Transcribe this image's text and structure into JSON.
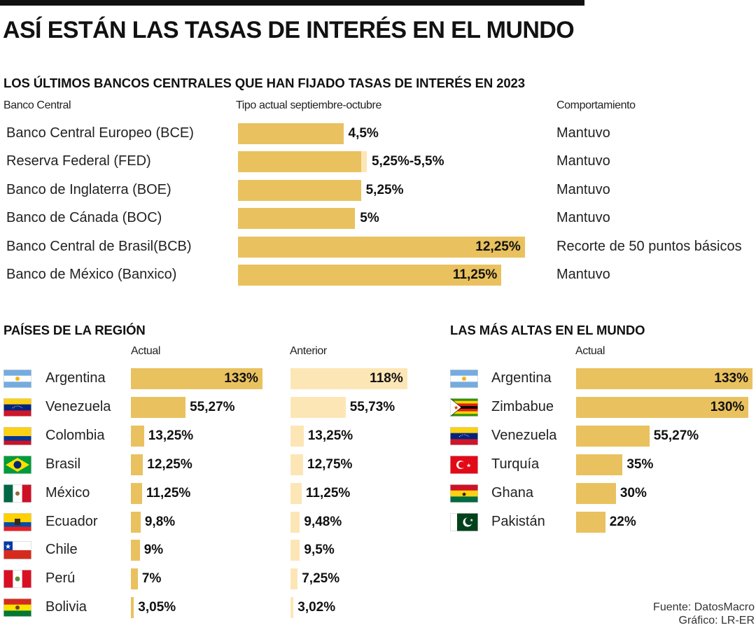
{
  "title": "ASÍ ESTÁN LAS TASAS DE INTERÉS EN EL MUNDO",
  "colors": {
    "bar": "#e9c15e",
    "bar_light": "#fde6b6",
    "text": "#111111"
  },
  "chart_data": [
    {
      "type": "bar",
      "title": "LOS ÚLTIMOS BANCOS CENTRALES QUE HAN FIJADO TASAS DE INTERÉS EN 2023",
      "headers": {
        "bank": "Banco Central",
        "rate": "Tipo actual septiembre-octubre",
        "behavior": "Comportamiento"
      },
      "unit": "%",
      "rows": [
        {
          "name": "Banco Central Europeo (BCE)",
          "value": 4.5,
          "range_max": null,
          "label": "4,5%",
          "behavior": "Mantuvo"
        },
        {
          "name": "Reserva Federal (FED)",
          "value": 5.25,
          "range_max": 5.5,
          "label": "5,25%-5,5%",
          "behavior": "Mantuvo"
        },
        {
          "name": "Banco de Inglaterra (BOE)",
          "value": 5.25,
          "range_max": null,
          "label": "5,25%",
          "behavior": "Mantuvo"
        },
        {
          "name": "Banco de Cánada (BOC)",
          "value": 5,
          "range_max": null,
          "label": "5%",
          "behavior": "Mantuvo"
        },
        {
          "name": "Banco Central de Brasil(BCB)",
          "value": 12.25,
          "range_max": null,
          "label": "12,25%",
          "behavior": "Recorte de 50 puntos básicos"
        },
        {
          "name": "Banco de México (Banxico)",
          "value": 11.25,
          "range_max": null,
          "label": "11,25%",
          "behavior": "Mantuvo"
        }
      ]
    },
    {
      "type": "bar",
      "title": "PAÍSES DE LA REGIÓN",
      "series_names": [
        "Actual",
        "Anterior"
      ],
      "rows": [
        {
          "name": "Argentina",
          "flag": "argentina-flag-icon",
          "actual": 133,
          "actual_label": "133%",
          "anterior": 118,
          "anterior_label": "118%"
        },
        {
          "name": "Venezuela",
          "flag": "venezuela-flag-icon",
          "actual": 55.27,
          "actual_label": "55,27%",
          "anterior": 55.73,
          "anterior_label": "55,73%"
        },
        {
          "name": "Colombia",
          "flag": "colombia-flag-icon",
          "actual": 13.25,
          "actual_label": "13,25%",
          "anterior": 13.25,
          "anterior_label": "13,25%"
        },
        {
          "name": "Brasil",
          "flag": "brasil-flag-icon",
          "actual": 12.25,
          "actual_label": "12,25%",
          "anterior": 12.75,
          "anterior_label": "12,75%"
        },
        {
          "name": "México",
          "flag": "mexico-flag-icon",
          "actual": 11.25,
          "actual_label": "11,25%",
          "anterior": 11.25,
          "anterior_label": "11,25%"
        },
        {
          "name": "Ecuador",
          "flag": "ecuador-flag-icon",
          "actual": 9.8,
          "actual_label": "9,8%",
          "anterior": 9.48,
          "anterior_label": "9,48%"
        },
        {
          "name": "Chile",
          "flag": "chile-flag-icon",
          "actual": 9,
          "actual_label": "9%",
          "anterior": 9.5,
          "anterior_label": "9,5%"
        },
        {
          "name": "Perú",
          "flag": "peru-flag-icon",
          "actual": 7,
          "actual_label": "7%",
          "anterior": 7.25,
          "anterior_label": "7,25%"
        },
        {
          "name": "Bolivia",
          "flag": "bolivia-flag-icon",
          "actual": 3.05,
          "actual_label": "3,05%",
          "anterior": 3.02,
          "anterior_label": "3,02%"
        }
      ]
    },
    {
      "type": "bar",
      "title": "LAS MÁS ALTAS EN EL MUNDO",
      "series_names": [
        "Actual"
      ],
      "rows": [
        {
          "name": "Argentina",
          "flag": "argentina-flag-icon",
          "actual": 133,
          "actual_label": "133%"
        },
        {
          "name": "Zimbabue",
          "flag": "zimbabwe-flag-icon",
          "actual": 130,
          "actual_label": "130%"
        },
        {
          "name": "Venezuela",
          "flag": "venezuela-flag-icon",
          "actual": 55.27,
          "actual_label": "55,27%"
        },
        {
          "name": "Turquía",
          "flag": "turkey-flag-icon",
          "actual": 35,
          "actual_label": "35%"
        },
        {
          "name": "Ghana",
          "flag": "ghana-flag-icon",
          "actual": 30,
          "actual_label": "30%"
        },
        {
          "name": "Pakistán",
          "flag": "pakistan-flag-icon",
          "actual": 22,
          "actual_label": "22%"
        }
      ]
    }
  ],
  "source": {
    "line1": "Fuente: DatosMacro",
    "line2": "Gráfico: LR-ER"
  }
}
